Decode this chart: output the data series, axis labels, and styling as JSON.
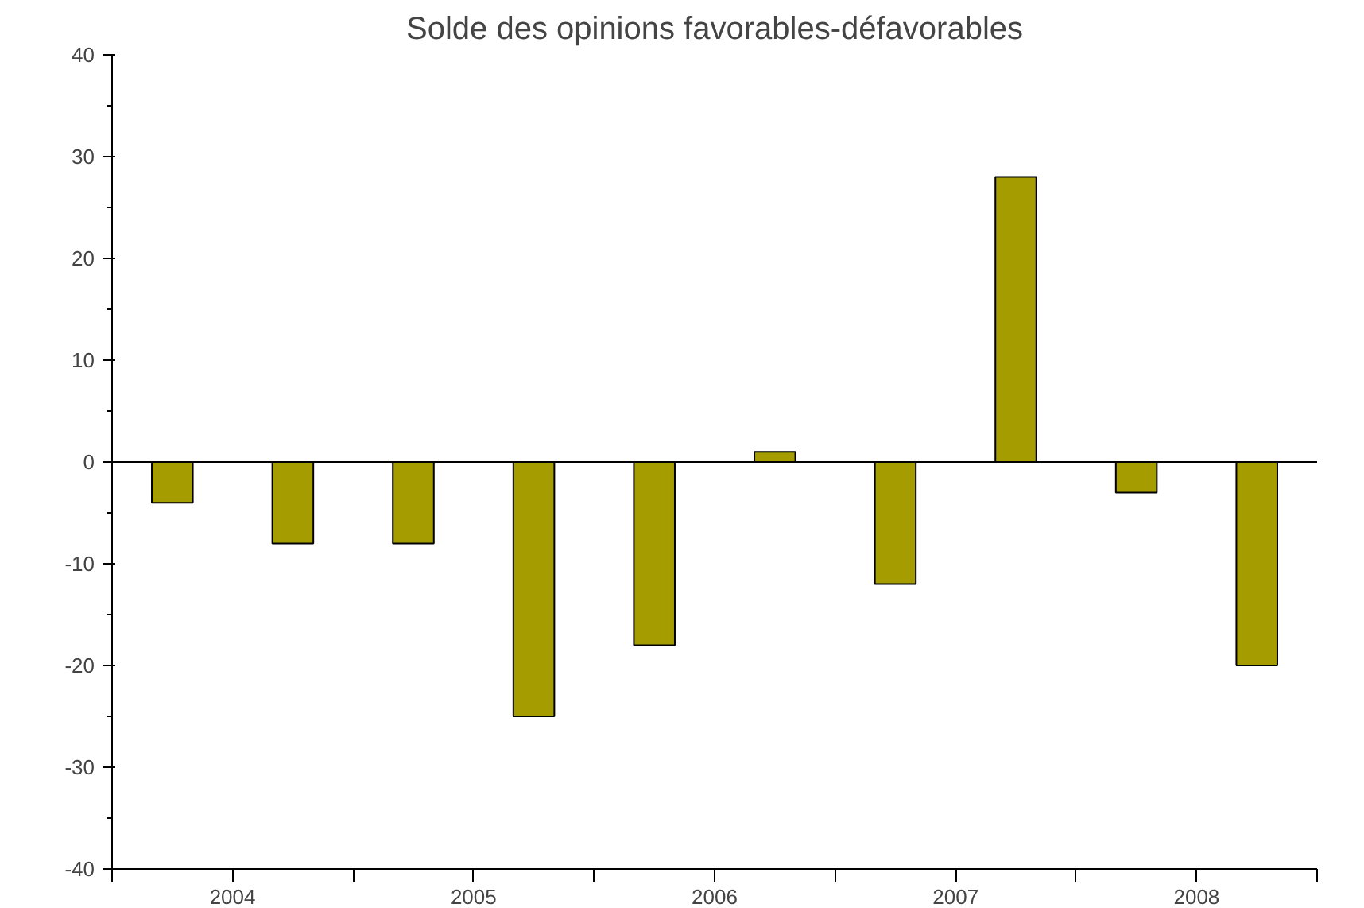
{
  "chart_data": {
    "type": "bar",
    "title": "Solde des opinions favorables-défavorables",
    "x": [
      2004.25,
      2004.75,
      2005.25,
      2005.75,
      2006.25,
      2006.75,
      2007.25,
      2007.75,
      2008.25,
      2008.75
    ],
    "values": [
      -4,
      -8,
      -8,
      -25,
      -18,
      1,
      -12,
      28,
      -3,
      -20
    ],
    "color": "#a59c00",
    "xlim": [
      2004,
      2009
    ],
    "xticks": [
      {
        "value": 2004,
        "label": null
      },
      {
        "value": 2004.5,
        "label": "2004"
      },
      {
        "value": 2005,
        "label": null
      },
      {
        "value": 2005.5,
        "label": "2005"
      },
      {
        "value": 2006,
        "label": null
      },
      {
        "value": 2006.5,
        "label": "2006"
      },
      {
        "value": 2007,
        "label": null
      },
      {
        "value": 2007.5,
        "label": "2007"
      },
      {
        "value": 2008,
        "label": null
      },
      {
        "value": 2008.5,
        "label": "2008"
      },
      {
        "value": 2009,
        "label": null
      }
    ],
    "ylim": [
      -40,
      40
    ],
    "yticks": [
      -40,
      -30,
      -20,
      -10,
      0,
      10,
      20,
      30,
      40
    ],
    "ref_lines": [
      {
        "axis": "y",
        "value": 0,
        "label": null
      }
    ],
    "grid": false
  }
}
